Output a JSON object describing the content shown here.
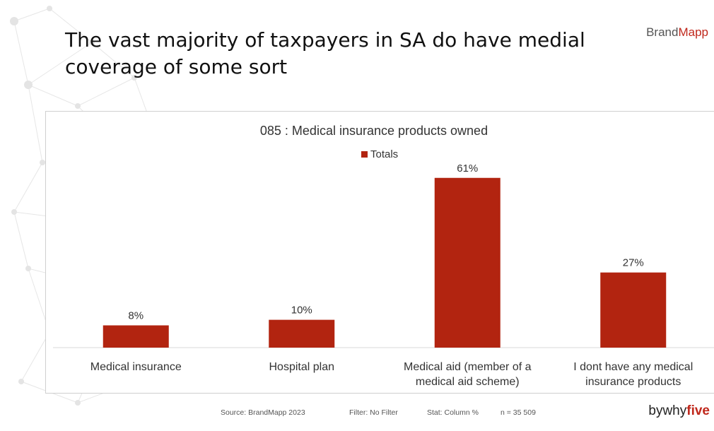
{
  "slide": {
    "title": "The vast majority of taxpayers in SA do have medial coverage of some sort",
    "brand_prefix": "Brand",
    "brand_accent": "Mapp",
    "footer": {
      "source": "Source: BrandMapp 2023",
      "filter": "Filter: No Filter",
      "stat": "Stat: Column %",
      "n": "n = 35 509"
    },
    "byline_prefix": "bywhy",
    "byline_accent": "five"
  },
  "colors": {
    "accent": "#c0281c",
    "bar": "#b22410",
    "text": "#333333"
  },
  "chart_data": {
    "type": "bar",
    "title": "085 : Medical insurance products owned",
    "categories": [
      [
        "Medical insurance"
      ],
      [
        "Hospital plan"
      ],
      [
        "Medical aid (member of a",
        "medical aid scheme)"
      ],
      [
        "I dont have any medical",
        "insurance products"
      ]
    ],
    "series": [
      {
        "name": "Totals",
        "values": [
          8,
          10,
          61,
          27
        ]
      }
    ],
    "data_labels": [
      "8%",
      "10%",
      "61%",
      "27%"
    ],
    "ylim": [
      0,
      65
    ],
    "grid": false,
    "legend_position": "top-center"
  }
}
